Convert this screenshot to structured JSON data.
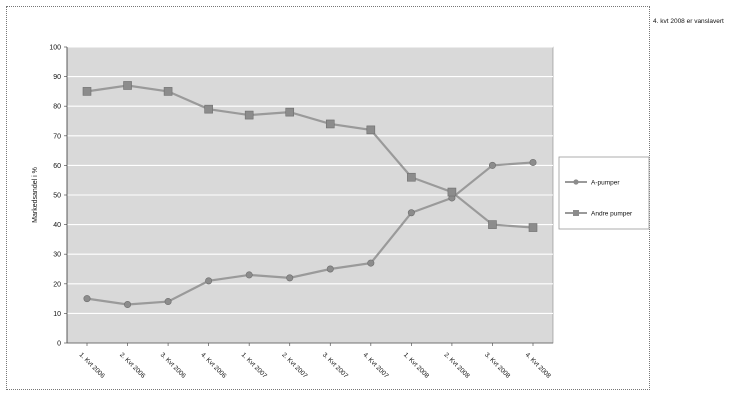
{
  "side_note": "4. kvt 2008 er vanslavert",
  "chart_data": {
    "type": "line",
    "title": "",
    "xlabel": "",
    "ylabel": "Markedsandel i %",
    "ylim": [
      0,
      100
    ],
    "yticks": [
      0,
      10,
      20,
      30,
      40,
      50,
      60,
      70,
      80,
      90,
      100
    ],
    "categories": [
      "1. Kvt 2006",
      "2. Kvt 2006",
      "3. Kvt 2006",
      "4. Kvt 2006",
      "1. Kvt 2007",
      "2. Kvt 2007",
      "3. Kvt 2007",
      "4. Kvt 2007",
      "1. Kvt 2008",
      "2. Kvt 2008",
      "3. Kvt 2008",
      "4. Kvt 2008"
    ],
    "series": [
      {
        "name": "A-pumper",
        "marker": "circle",
        "color": "#9a9a9a",
        "values": [
          15,
          13,
          14,
          21,
          23,
          22,
          25,
          27,
          44,
          49,
          60,
          61
        ]
      },
      {
        "name": "Andre pumper",
        "marker": "square",
        "color": "#9a9a9a",
        "values": [
          85,
          87,
          85,
          79,
          77,
          78,
          74,
          72,
          56,
          51,
          40,
          39
        ]
      }
    ],
    "grid": true,
    "legend_position": "right"
  }
}
